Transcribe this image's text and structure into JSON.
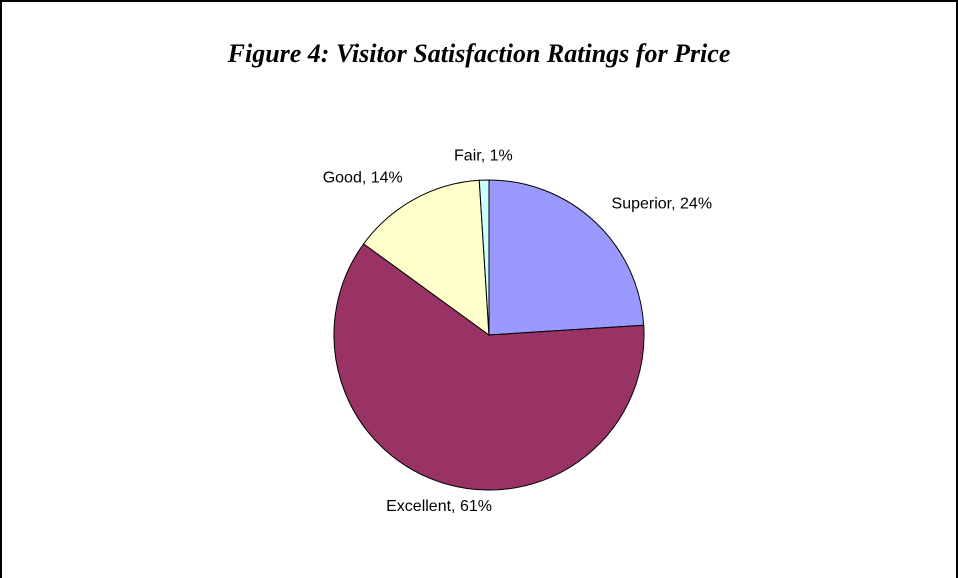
{
  "chart_data": {
    "type": "pie",
    "title": "Figure 4: Visitor Satisfaction Ratings for Price",
    "values": [
      24,
      61,
      14,
      1
    ],
    "value_labels": [
      "Superior, 24%",
      "Excellent, 61%",
      "Good, 14%",
      "Fair, 1%"
    ],
    "colors": [
      "#9999ff",
      "#993366",
      "#ffffcc",
      "#ccffff"
    ]
  }
}
